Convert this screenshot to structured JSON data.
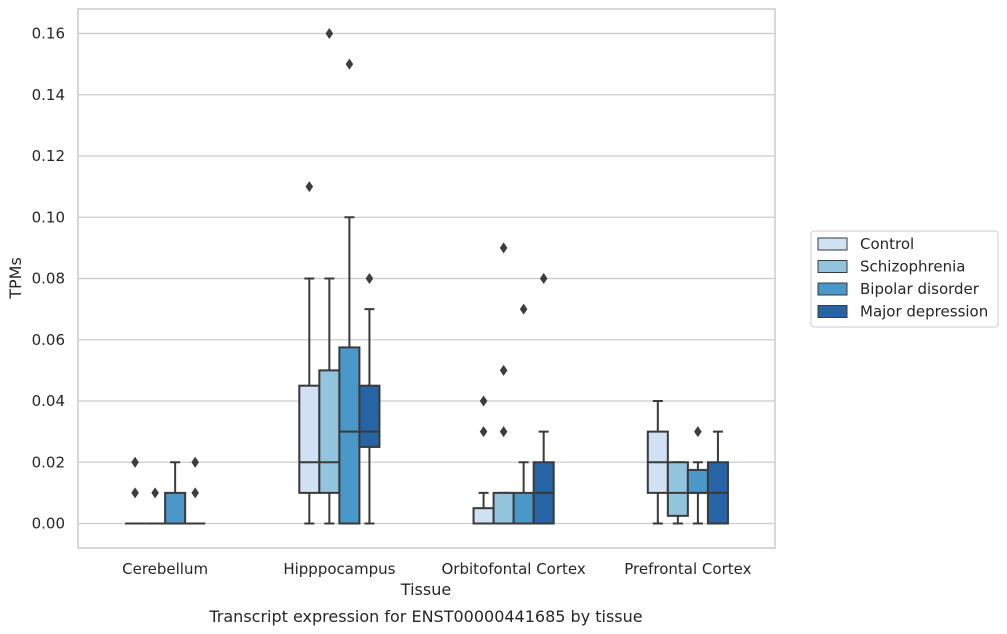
{
  "chart_data": {
    "type": "box",
    "title": "",
    "caption": "Transcript expression for ENST00000441685 by tissue",
    "xlabel": "Tissue",
    "ylabel": "TPMs",
    "ylim": [
      -0.008,
      0.168
    ],
    "yticks": [
      0.0,
      0.02,
      0.04,
      0.06,
      0.08,
      0.1,
      0.12,
      0.14,
      0.16
    ],
    "ytick_labels": [
      "0.00",
      "0.02",
      "0.04",
      "0.06",
      "0.08",
      "0.10",
      "0.12",
      "0.14",
      "0.16"
    ],
    "grid": "horizontal",
    "legend_position": "right",
    "categories": [
      "Cerebellum",
      "Hipppocampus",
      "Orbitofontal Cortex",
      "Prefrontal Cortex"
    ],
    "series": [
      {
        "name": "Control",
        "color": "#cfe1f2",
        "boxes": [
          {
            "min": 0.0,
            "q1": 0.0,
            "median": 0.0,
            "q3": 0.0,
            "max": 0.0,
            "outliers": [
              0.01,
              0.02
            ]
          },
          {
            "min": 0.0,
            "q1": 0.01,
            "median": 0.02,
            "q3": 0.045,
            "max": 0.08,
            "outliers": [
              0.11
            ]
          },
          {
            "min": 0.0,
            "q1": 0.0,
            "median": 0.0,
            "q3": 0.005,
            "max": 0.01,
            "outliers": [
              0.03,
              0.04
            ]
          },
          {
            "min": 0.0,
            "q1": 0.01,
            "median": 0.02,
            "q3": 0.03,
            "max": 0.04,
            "outliers": []
          }
        ]
      },
      {
        "name": "Schizophrenia",
        "color": "#93c4de",
        "boxes": [
          {
            "min": 0.0,
            "q1": 0.0,
            "median": 0.0,
            "q3": 0.0,
            "max": 0.0,
            "outliers": [
              0.01
            ]
          },
          {
            "min": 0.0,
            "q1": 0.01,
            "median": 0.02,
            "q3": 0.05,
            "max": 0.08,
            "outliers": [
              0.16
            ]
          },
          {
            "min": 0.0,
            "q1": 0.0,
            "median": 0.0,
            "q3": 0.01,
            "max": 0.01,
            "outliers": [
              0.03,
              0.05,
              0.09
            ]
          },
          {
            "min": 0.0,
            "q1": 0.0025,
            "median": 0.01,
            "q3": 0.02,
            "max": 0.02,
            "outliers": []
          }
        ]
      },
      {
        "name": "Bipolar disorder",
        "color": "#4a98c9",
        "boxes": [
          {
            "min": 0.0,
            "q1": 0.0,
            "median": 0.0,
            "q3": 0.01,
            "max": 0.02,
            "outliers": []
          },
          {
            "min": 0.0,
            "q1": 0.0,
            "median": 0.03,
            "q3": 0.0575,
            "max": 0.1,
            "outliers": [
              0.15
            ]
          },
          {
            "min": 0.0,
            "q1": 0.0,
            "median": 0.0,
            "q3": 0.01,
            "max": 0.02,
            "outliers": [
              0.07
            ]
          },
          {
            "min": 0.0,
            "q1": 0.01,
            "median": 0.01,
            "q3": 0.0175,
            "max": 0.02,
            "outliers": [
              0.03
            ]
          }
        ]
      },
      {
        "name": "Major depression",
        "color": "#2764a6",
        "boxes": [
          {
            "min": 0.0,
            "q1": 0.0,
            "median": 0.0,
            "q3": 0.0,
            "max": 0.0,
            "outliers": [
              0.01,
              0.02
            ]
          },
          {
            "min": 0.0,
            "q1": 0.025,
            "median": 0.03,
            "q3": 0.045,
            "max": 0.07,
            "outliers": [
              0.08
            ]
          },
          {
            "min": 0.0,
            "q1": 0.0,
            "median": 0.01,
            "q3": 0.02,
            "max": 0.03,
            "outliers": [
              0.08
            ]
          },
          {
            "min": 0.0,
            "q1": 0.0,
            "median": 0.01,
            "q3": 0.02,
            "max": 0.03,
            "outliers": []
          }
        ]
      }
    ]
  }
}
